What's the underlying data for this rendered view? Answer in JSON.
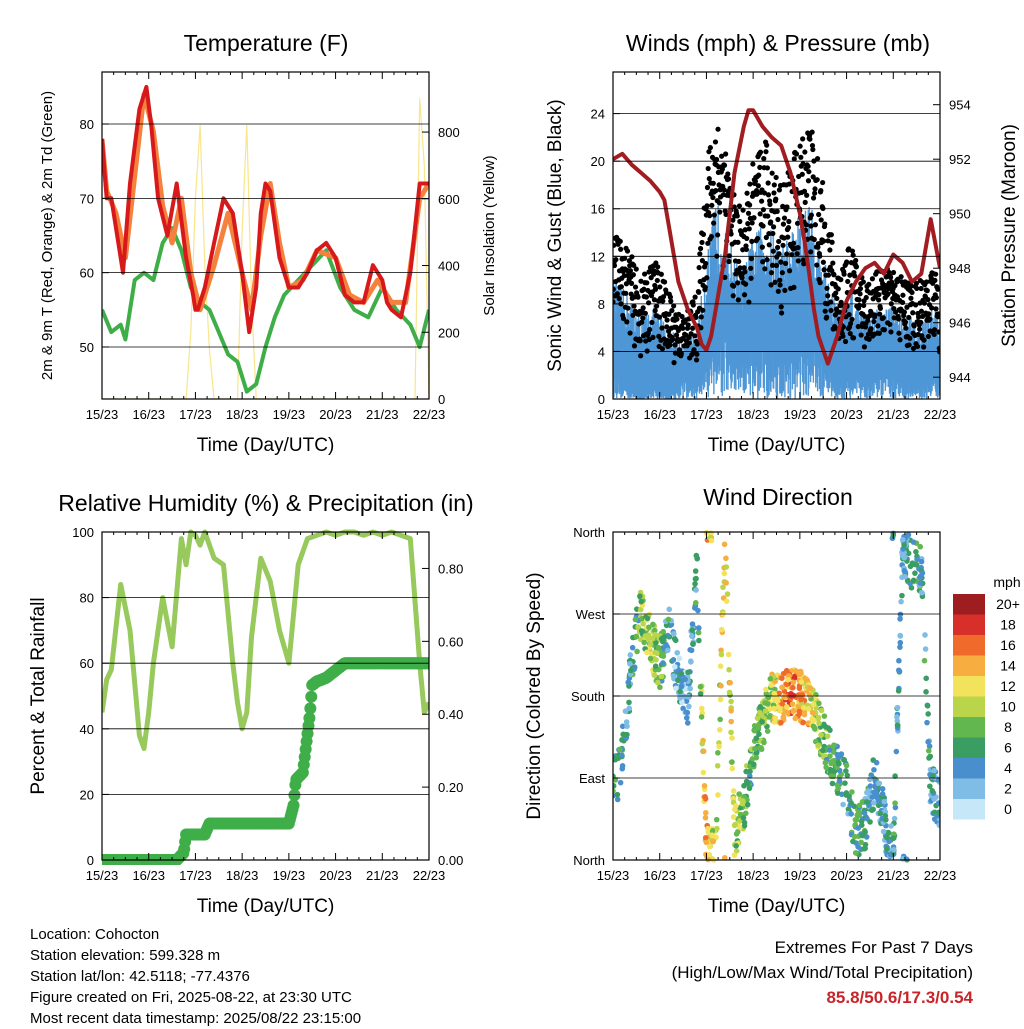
{
  "chart_data": [
    {
      "id": "temperature",
      "type": "line",
      "title": "Temperature (F)",
      "xlabel": "Time (Day/UTC)",
      "ylabel": "2m & 9m T (Red, Orange) & 2m Td (Green)",
      "ylabel_right": "Solar Insolation (Yellow)",
      "x_ticks": [
        "15/23",
        "16/23",
        "17/23",
        "18/23",
        "19/23",
        "20/23",
        "21/23",
        "22/23"
      ],
      "ylim": [
        43,
        87
      ],
      "y_ticks": [
        50,
        60,
        70,
        80
      ],
      "ylim_right": [
        0,
        980
      ],
      "y_ticks_right": [
        0,
        200,
        400,
        600,
        800
      ],
      "grid": true,
      "series": [
        {
          "color": "#d7191c",
          "x": [
            0,
            0.05,
            0.1,
            0.2,
            0.3,
            0.45,
            0.6,
            0.8,
            0.95,
            1.05,
            1.2,
            1.4,
            1.6,
            1.8,
            1.95,
            2.0,
            2.05,
            2.1,
            2.2,
            2.4,
            2.6,
            2.8,
            3.0,
            3.15,
            3.3,
            3.4,
            3.5,
            3.6,
            3.8,
            4.0,
            4.2,
            4.4,
            4.6,
            4.8,
            5.0,
            5.2,
            5.4,
            5.6,
            5.8,
            6.0,
            6.1,
            6.2,
            6.4,
            6.6,
            6.8,
            7.0
          ],
          "values": [
            78,
            74,
            70,
            70,
            66,
            60,
            72,
            82,
            85,
            80,
            70,
            65,
            72,
            62,
            57,
            55,
            55,
            56,
            58,
            64,
            70,
            68,
            60,
            52,
            58,
            68,
            72,
            71,
            62,
            58,
            58,
            60,
            63,
            64,
            62,
            57,
            56,
            56,
            61,
            59,
            56,
            55,
            54,
            60,
            72,
            72
          ]
        },
        {
          "color": "#f4813c",
          "x": [
            0,
            0.1,
            0.3,
            0.5,
            0.7,
            0.9,
            1.1,
            1.3,
            1.5,
            1.7,
            1.9,
            2.1,
            2.4,
            2.7,
            3.0,
            3.2,
            3.4,
            3.6,
            3.8,
            4.0,
            4.3,
            4.6,
            5.0,
            5.3,
            5.6,
            5.9,
            6.2,
            6.5,
            6.8,
            7.0
          ],
          "values": [
            78,
            71,
            68,
            62,
            73,
            84,
            79,
            69,
            64,
            70,
            60,
            55,
            61,
            68,
            60,
            55,
            65,
            72,
            64,
            58,
            59,
            63,
            62,
            57,
            56,
            59,
            56,
            56,
            70,
            72
          ]
        },
        {
          "color": "#3fae49",
          "x": [
            0,
            0.2,
            0.4,
            0.5,
            0.7,
            0.9,
            1.1,
            1.3,
            1.5,
            1.7,
            1.9,
            2.1,
            2.3,
            2.5,
            2.7,
            2.9,
            3.1,
            3.3,
            3.5,
            3.7,
            3.9,
            4.2,
            4.5,
            4.8,
            5.1,
            5.4,
            5.7,
            6.0,
            6.3,
            6.6,
            6.8,
            7.0
          ],
          "values": [
            55,
            52,
            53,
            51,
            59,
            60,
            59,
            64,
            66,
            63,
            58,
            56,
            55,
            52,
            49,
            48,
            44,
            45,
            50,
            54,
            57,
            59,
            61,
            63,
            58,
            55,
            54,
            58,
            55,
            53,
            50,
            55
          ]
        },
        {
          "color": "#f8e58c",
          "axis": "right",
          "x": [
            0,
            0.1,
            0.2,
            0.3,
            0.4,
            0.5,
            0.6,
            0.7,
            0.8,
            0.9,
            1.0,
            1.1,
            1.2,
            1.3,
            1.4,
            1.5,
            1.6,
            1.7,
            1.8,
            1.9,
            2.0,
            2.1,
            2.2,
            2.3,
            2.4,
            2.5,
            2.6,
            2.7,
            2.8,
            2.9,
            3.0,
            3.1,
            3.2,
            3.3,
            3.4,
            3.5,
            3.6,
            3.7,
            3.8,
            3.9,
            4.0,
            4.1,
            4.2,
            4.3,
            4.4,
            4.5,
            4.6,
            4.7,
            4.8,
            4.9,
            5.0,
            5.1,
            5.2,
            5.3,
            5.4,
            5.5,
            5.6,
            5.7,
            5.8,
            5.9,
            6.0,
            6.1,
            6.2,
            6.3,
            6.4,
            6.5,
            6.6,
            6.7,
            6.8,
            6.9,
            7.0
          ],
          "values": [
            0,
            0,
            0,
            0,
            0,
            0,
            0,
            0,
            0,
            0,
            0,
            0,
            0,
            0,
            0,
            0,
            0,
            0,
            0,
            200,
            600,
            820,
            400,
            150,
            0,
            0,
            0,
            0,
            0,
            0,
            500,
            820,
            300,
            0,
            0,
            0,
            0,
            0,
            0,
            0,
            0,
            0,
            0,
            0,
            0,
            0,
            0,
            0,
            0,
            0,
            0,
            0,
            0,
            0,
            0,
            0,
            0,
            0,
            0,
            0,
            0,
            0,
            0,
            0,
            0,
            0,
            0,
            0,
            900,
            700,
            0
          ]
        }
      ]
    },
    {
      "id": "winds",
      "type": "scatter",
      "title": "Winds (mph) & Pressure (mb)",
      "xlabel": "Time (Day/UTC)",
      "ylabel": "Sonic Wind & Gust (Blue, Black)",
      "ylabel_right": "Station Pressure (Maroon)",
      "x_ticks": [
        "15/23",
        "16/23",
        "17/23",
        "18/23",
        "19/23",
        "20/23",
        "21/23",
        "22/23"
      ],
      "ylim": [
        0,
        27.5
      ],
      "y_ticks": [
        0,
        4,
        8,
        12,
        16,
        20,
        24
      ],
      "ylim_right": [
        943.2,
        955.2
      ],
      "y_ticks_right": [
        944,
        946,
        948,
        950,
        952,
        954
      ],
      "grid": true,
      "wind_envelope": {
        "x": [
          0,
          0.3,
          0.6,
          0.9,
          1.2,
          1.5,
          1.8,
          2.0,
          2.2,
          2.4,
          2.6,
          2.8,
          3.0,
          3.3,
          3.6,
          3.9,
          4.2,
          4.5,
          4.8,
          5.1,
          5.4,
          5.7,
          6.0,
          6.3,
          6.6,
          6.9,
          7.0
        ],
        "sustained_max": [
          10,
          9,
          7,
          8,
          6,
          5,
          6,
          12,
          17,
          15,
          12,
          11,
          14,
          15,
          13,
          15,
          17,
          12,
          8,
          9,
          7,
          8,
          8,
          7,
          7,
          8,
          7
        ],
        "sustained_min": [
          3,
          1,
          0,
          1,
          0,
          2,
          1,
          4,
          6,
          5,
          4,
          3,
          4,
          5,
          3,
          4,
          6,
          3,
          1,
          2,
          1,
          2,
          2,
          1,
          1,
          2,
          1
        ],
        "gust_max": [
          14,
          13,
          10,
          12,
          9,
          7,
          9,
          20,
          25,
          21,
          17,
          16,
          20,
          22,
          18,
          21,
          24,
          18,
          11,
          13,
          10,
          11,
          11,
          10,
          10,
          11,
          9
        ],
        "gust_min": [
          8,
          6,
          3,
          5,
          3,
          3,
          3,
          9,
          12,
          10,
          8,
          7,
          9,
          10,
          7,
          9,
          12,
          7,
          4,
          5,
          4,
          5,
          5,
          4,
          4,
          5,
          3
        ]
      },
      "series": [
        {
          "color": "#a11d21",
          "axis": "right",
          "x": [
            0,
            0.2,
            0.4,
            0.6,
            0.8,
            1.0,
            1.1,
            1.2,
            1.4,
            1.6,
            1.8,
            1.9,
            2.0,
            2.1,
            2.2,
            2.4,
            2.6,
            2.8,
            2.9,
            3.0,
            3.2,
            3.4,
            3.6,
            3.8,
            4.0,
            4.1,
            4.2,
            4.3,
            4.4,
            4.6,
            4.8,
            5.0,
            5.2,
            5.4,
            5.6,
            5.8,
            6.0,
            6.2,
            6.4,
            6.6,
            6.8,
            7.0
          ],
          "values": [
            952,
            952.2,
            951.8,
            951.5,
            951.2,
            950.8,
            950.5,
            949.5,
            947.5,
            946.5,
            945.8,
            945.2,
            945,
            945.5,
            946.5,
            948.5,
            951.5,
            953.2,
            953.8,
            953.8,
            953.2,
            952.8,
            952.5,
            951.5,
            950,
            949,
            947.8,
            946.5,
            945.5,
            944.5,
            945.5,
            946.8,
            947.5,
            948,
            948.2,
            947.8,
            948.5,
            948.2,
            947.5,
            947.8,
            949.8,
            948
          ]
        }
      ]
    },
    {
      "id": "humidity",
      "type": "line",
      "title": "Relative Humidity (%) & Precipitation (in)",
      "xlabel": "Time (Day/UTC)",
      "ylabel": "Percent & Total Rainfall",
      "x_ticks": [
        "15/23",
        "16/23",
        "17/23",
        "18/23",
        "19/23",
        "20/23",
        "21/23",
        "22/23"
      ],
      "ylim": [
        0,
        100
      ],
      "y_ticks": [
        0,
        20,
        40,
        60,
        80,
        100
      ],
      "ylim_right": [
        0,
        0.9
      ],
      "y_ticks_right": [
        "0.00",
        "0.20",
        "0.40",
        "0.60",
        "0.80"
      ],
      "grid": true,
      "series": [
        {
          "color": "#97c95c",
          "x": [
            0,
            0.1,
            0.2,
            0.4,
            0.6,
            0.8,
            0.9,
            1.0,
            1.1,
            1.3,
            1.5,
            1.7,
            1.8,
            1.9,
            2.0,
            2.1,
            2.2,
            2.4,
            2.6,
            2.8,
            2.9,
            3.0,
            3.1,
            3.2,
            3.4,
            3.6,
            3.8,
            4.0,
            4.2,
            4.4,
            4.6,
            4.8,
            5.0,
            5.2,
            5.4,
            5.6,
            5.8,
            6.0,
            6.2,
            6.4,
            6.6,
            6.8,
            6.9,
            7.0
          ],
          "values": [
            45,
            55,
            58,
            84,
            70,
            38,
            34,
            45,
            60,
            80,
            65,
            98,
            90,
            100,
            99,
            96,
            100,
            92,
            90,
            60,
            48,
            40,
            45,
            68,
            92,
            85,
            70,
            60,
            90,
            98,
            99,
            100,
            99,
            100,
            100,
            99,
            100,
            99,
            100,
            99,
            98,
            60,
            45,
            48
          ]
        },
        {
          "color": "#3fae49",
          "axis": "right",
          "x": [
            0,
            1.6,
            1.75,
            1.8,
            2.2,
            2.3,
            3.5,
            4.0,
            4.1,
            4.15,
            4.3,
            4.45,
            4.5,
            4.6,
            4.8,
            5.0,
            5.2,
            5.5,
            6.0,
            6.5,
            7.0
          ],
          "values": [
            0,
            0,
            0.02,
            0.07,
            0.07,
            0.1,
            0.1,
            0.1,
            0.15,
            0.22,
            0.24,
            0.4,
            0.48,
            0.49,
            0.5,
            0.52,
            0.54,
            0.54,
            0.54,
            0.54,
            0.54
          ]
        }
      ]
    },
    {
      "id": "direction",
      "type": "scatter",
      "title": "Wind Direction",
      "xlabel": "Time (Day/UTC)",
      "ylabel": "Direction (Colored By Speed)",
      "x_ticks": [
        "15/23",
        "16/23",
        "17/23",
        "18/23",
        "19/23",
        "20/23",
        "21/23",
        "22/23"
      ],
      "y_ticks": [
        "North",
        "East",
        "South",
        "West",
        "North"
      ],
      "ylim": [
        0,
        360
      ],
      "grid": true,
      "legend": {
        "unit": "mph",
        "labels": [
          "0",
          "2",
          "4",
          "6",
          "8",
          "10",
          "12",
          "14",
          "16",
          "18",
          "20+"
        ],
        "colors": [
          "#c6e7f8",
          "#7fbde6",
          "#4a8fcd",
          "#3a9e62",
          "#63b74f",
          "#bbd54b",
          "#f3e25b",
          "#f7ad3f",
          "#f06a2c",
          "#d7302b",
          "#9d1d21"
        ],
        "placement": "right"
      },
      "points_guide": {
        "x": [
          0,
          0.1,
          0.3,
          0.45,
          0.6,
          0.8,
          1.0,
          1.2,
          1.4,
          1.6,
          1.8,
          2.0,
          2.2,
          2.4,
          2.6,
          2.8,
          3.0,
          3.2,
          3.4,
          3.6,
          3.8,
          4.0,
          4.2,
          4.4,
          4.6,
          4.8,
          5.0,
          5.2,
          5.4,
          5.6,
          5.8,
          6.0,
          6.2,
          6.4,
          6.6,
          6.8,
          7.0
        ],
        "direction": [
          90,
          85,
          165,
          235,
          270,
          240,
          215,
          250,
          200,
          175,
          320,
          15,
          20,
          355,
          30,
          60,
          120,
          150,
          180,
          175,
          185,
          180,
          175,
          150,
          120,
          100,
          80,
          30,
          40,
          90,
          45,
          0,
          340,
          325,
          320,
          80,
          60
        ],
        "speed": [
          6,
          6,
          4,
          5,
          8,
          10,
          8,
          4,
          3,
          3,
          5,
          14,
          10,
          12,
          10,
          8,
          7,
          8,
          10,
          14,
          16,
          14,
          12,
          8,
          7,
          6,
          5,
          6,
          5,
          5,
          4,
          5,
          4,
          6,
          5,
          4,
          4
        ]
      }
    }
  ],
  "station": {
    "location": "Location: Cohocton",
    "elevation": "Station elevation: 599.328 m",
    "latlon": "Station lat/lon: 42.5118; -77.4376",
    "created": "Figure created on Fri, 2025-08-22, at 23:30 UTC",
    "timestamp": "Most recent data timestamp: 2025/08/22 23:15:00"
  },
  "extremes": {
    "heading": "Extremes For Past 7 Days",
    "subheading": "(High/Low/Max Wind/Total Precipitation)",
    "values": "85.8/50.6/17.3/0.54"
  }
}
